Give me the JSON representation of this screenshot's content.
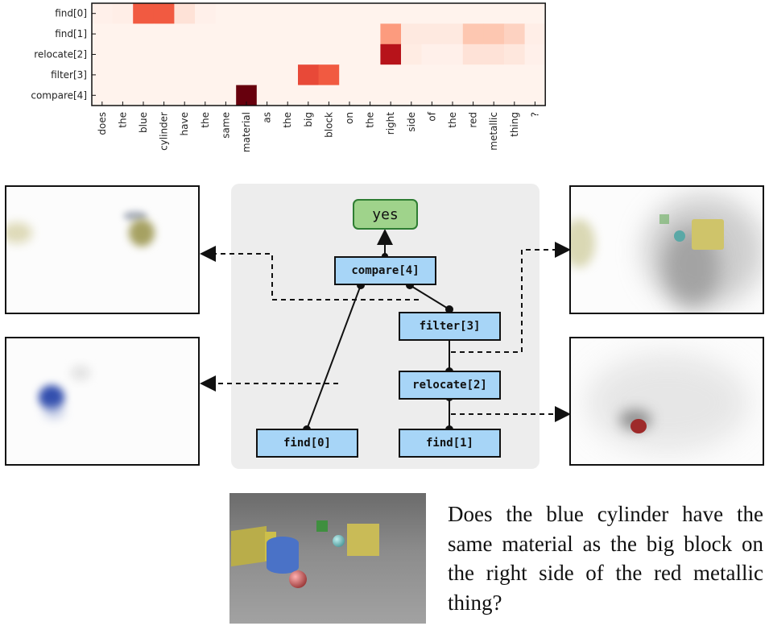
{
  "chart_data": {
    "type": "heatmap",
    "rows": [
      "find[0]",
      "find[1]",
      "relocate[2]",
      "filter[3]",
      "compare[4]"
    ],
    "columns": [
      "does",
      "the",
      "blue",
      "cylinder",
      "have",
      "the",
      "same",
      "material",
      "as",
      "the",
      "big",
      "block",
      "on",
      "the",
      "right",
      "side",
      "of",
      "the",
      "red",
      "metallic",
      "thing",
      "?"
    ],
    "values": [
      [
        0.02,
        0.03,
        0.55,
        0.55,
        0.08,
        0.02,
        0.01,
        0.01,
        0.01,
        0.01,
        0.01,
        0.01,
        0.01,
        0.01,
        0.01,
        0.01,
        0.01,
        0.01,
        0.01,
        0.01,
        0.01,
        0.01
      ],
      [
        0.01,
        0.01,
        0.01,
        0.01,
        0.01,
        0.01,
        0.01,
        0.01,
        0.01,
        0.01,
        0.01,
        0.01,
        0.01,
        0.01,
        0.35,
        0.05,
        0.05,
        0.05,
        0.2,
        0.2,
        0.15,
        0.03
      ],
      [
        0.01,
        0.01,
        0.01,
        0.01,
        0.01,
        0.01,
        0.01,
        0.01,
        0.01,
        0.01,
        0.01,
        0.01,
        0.01,
        0.01,
        0.8,
        0.04,
        0.02,
        0.02,
        0.08,
        0.08,
        0.06,
        0.02
      ],
      [
        0.01,
        0.01,
        0.01,
        0.01,
        0.01,
        0.01,
        0.01,
        0.01,
        0.01,
        0.01,
        0.6,
        0.55,
        0.01,
        0.01,
        0.01,
        0.01,
        0.01,
        0.01,
        0.01,
        0.01,
        0.01,
        0.01
      ],
      [
        0.01,
        0.01,
        0.01,
        0.01,
        0.01,
        0.01,
        0.01,
        1.0,
        0.01,
        0.01,
        0.01,
        0.01,
        0.01,
        0.01,
        0.01,
        0.01,
        0.01,
        0.01,
        0.01,
        0.01,
        0.01,
        0.01
      ]
    ],
    "colormap": [
      "#fff5f0",
      "#fcbba1",
      "#fb6a4a",
      "#cb181d",
      "#67000d"
    ]
  },
  "program": {
    "answer": "yes",
    "modules": {
      "compare": "compare[4]",
      "filter": "filter[3]",
      "relocate": "relocate[2]",
      "find0": "find[0]",
      "find1": "find[1]"
    }
  },
  "question": "Does the blue cylinder have the same material as the big block on the right side of the red metallic thing?",
  "colors": {
    "node_fill": "#a7d5f7",
    "answer_fill": "#9fd38b",
    "answer_border": "#2e7d32",
    "panel": "#ededed"
  }
}
